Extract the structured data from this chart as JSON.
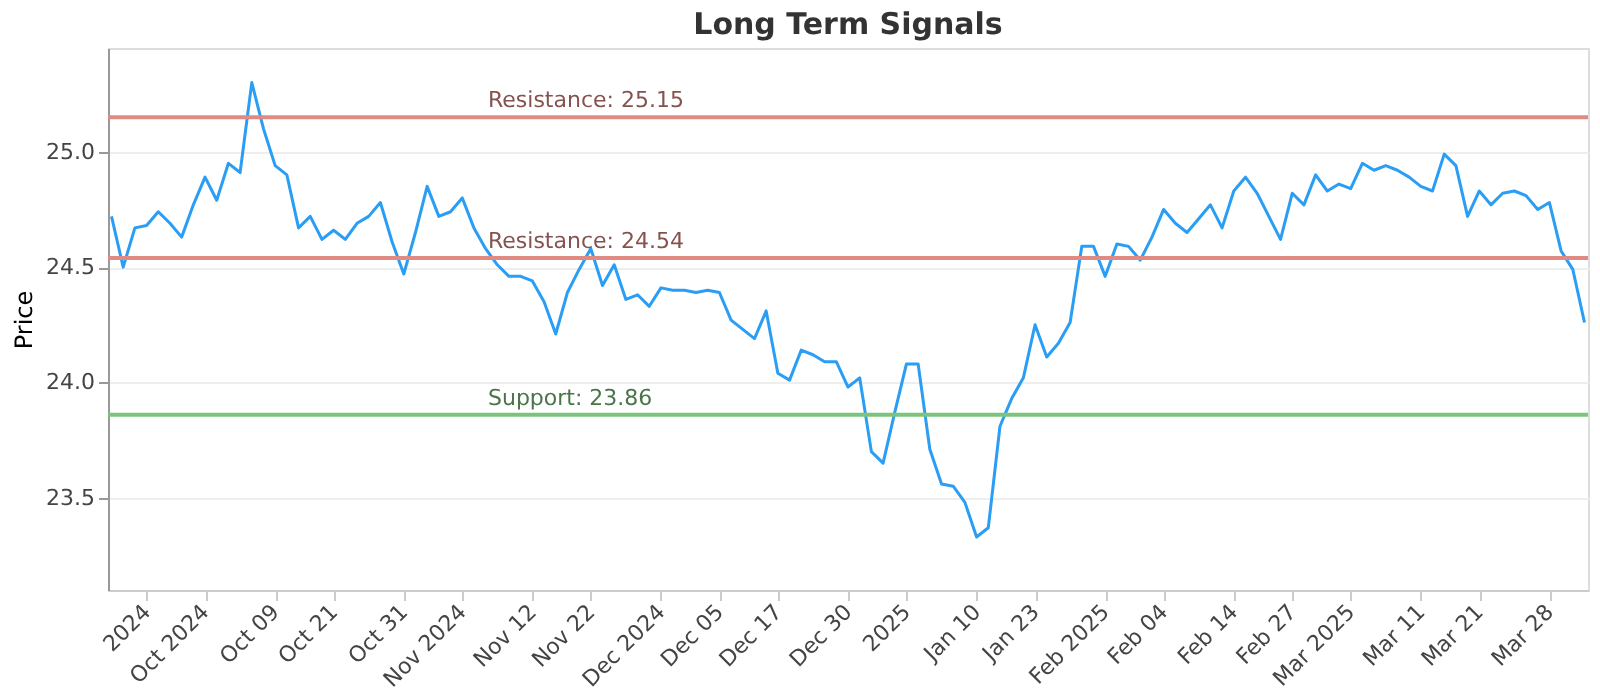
{
  "chart_data": {
    "type": "line",
    "title": "Long Term Signals",
    "ylabel": "Price",
    "categories": [
      null,
      null,
      null,
      "2024",
      null,
      null,
      null,
      null,
      "Oct 2024",
      null,
      null,
      null,
      null,
      null,
      "Oct 09",
      null,
      null,
      null,
      null,
      "Oct 21",
      null,
      null,
      null,
      null,
      null,
      "Oct 31",
      null,
      null,
      null,
      null,
      "Nov 2024",
      null,
      null,
      null,
      null,
      null,
      "Nov 12",
      null,
      null,
      null,
      null,
      "Nov 22",
      null,
      null,
      null,
      null,
      null,
      "Dec 2024",
      null,
      null,
      null,
      null,
      "Dec 05",
      null,
      null,
      null,
      null,
      "Dec 17",
      null,
      null,
      null,
      null,
      null,
      "Dec 30",
      null,
      null,
      null,
      null,
      "2025",
      null,
      null,
      null,
      null,
      null,
      "Jan 10",
      null,
      null,
      null,
      null,
      "Jan 23",
      null,
      null,
      null,
      null,
      null,
      "Feb 2025",
      null,
      null,
      null,
      null,
      "Feb 04",
      null,
      null,
      null,
      null,
      null,
      "Feb 14",
      null,
      null,
      null,
      null,
      "Feb 27",
      null,
      null,
      null,
      null,
      "Mar 2025",
      null,
      null,
      null,
      null,
      null,
      "Mar 11",
      null,
      null,
      null,
      null,
      "Mar 21",
      null,
      null,
      null,
      null,
      null,
      "Mar 28",
      null,
      null,
      null
    ],
    "series": [
      {
        "color": "#2a9df4",
        "values": [
          24.72,
          24.5,
          24.67,
          24.68,
          24.74,
          24.69,
          24.63,
          24.77,
          24.89,
          24.79,
          24.95,
          24.91,
          25.3,
          25.1,
          24.94,
          24.9,
          24.67,
          24.72,
          24.62,
          24.66,
          24.62,
          24.69,
          24.72,
          24.78,
          24.61,
          24.47,
          24.65,
          24.85,
          24.72,
          24.74,
          24.8,
          24.67,
          24.58,
          24.51,
          24.46,
          24.46,
          24.44,
          24.35,
          24.21,
          24.39,
          24.49,
          24.58,
          24.42,
          24.51,
          24.36,
          24.38,
          24.33,
          24.41,
          24.4,
          24.4,
          24.39,
          24.4,
          24.39,
          24.27,
          24.23,
          24.19,
          24.31,
          24.04,
          24.01,
          24.14,
          24.12,
          24.09,
          24.09,
          23.98,
          24.02,
          23.7,
          23.65,
          23.87,
          24.08,
          24.08,
          23.71,
          23.56,
          23.55,
          23.48,
          23.33,
          23.37,
          23.81,
          23.93,
          24.02,
          24.25,
          24.11,
          24.17,
          24.26,
          24.59,
          24.59,
          24.46,
          24.6,
          24.59,
          24.53,
          24.63,
          24.75,
          24.69,
          24.65,
          24.71,
          24.77,
          24.67,
          24.83,
          24.89,
          24.82,
          24.72,
          24.62,
          24.82,
          24.77,
          24.9,
          24.83,
          24.86,
          24.84,
          24.95,
          24.92,
          24.94,
          24.92,
          24.89,
          24.85,
          24.83,
          24.99,
          24.94,
          24.72,
          24.83,
          24.77,
          24.82,
          24.83,
          24.81,
          24.75,
          24.78,
          24.57,
          24.49,
          24.26
        ]
      }
    ],
    "ylim": [
      23.1,
      25.45
    ],
    "yticks": [
      23.5,
      {
        "value": 24,
        "label": "24.0"
      },
      24.5,
      {
        "value": 25,
        "label": "25.0"
      }
    ],
    "grid": "y",
    "marker": "none",
    "line_style": "solid",
    "ref_lines": [
      {
        "axis": "y",
        "value": 25.15,
        "label": "Resistance: 25.15",
        "color": "#e08a84"
      },
      {
        "axis": "y",
        "value": 24.54,
        "label": "Resistance: 24.54",
        "color": "#e08a84"
      },
      {
        "axis": "y",
        "value": 23.86,
        "label": "Support: 23.86",
        "color": "#7cc47c"
      }
    ]
  }
}
